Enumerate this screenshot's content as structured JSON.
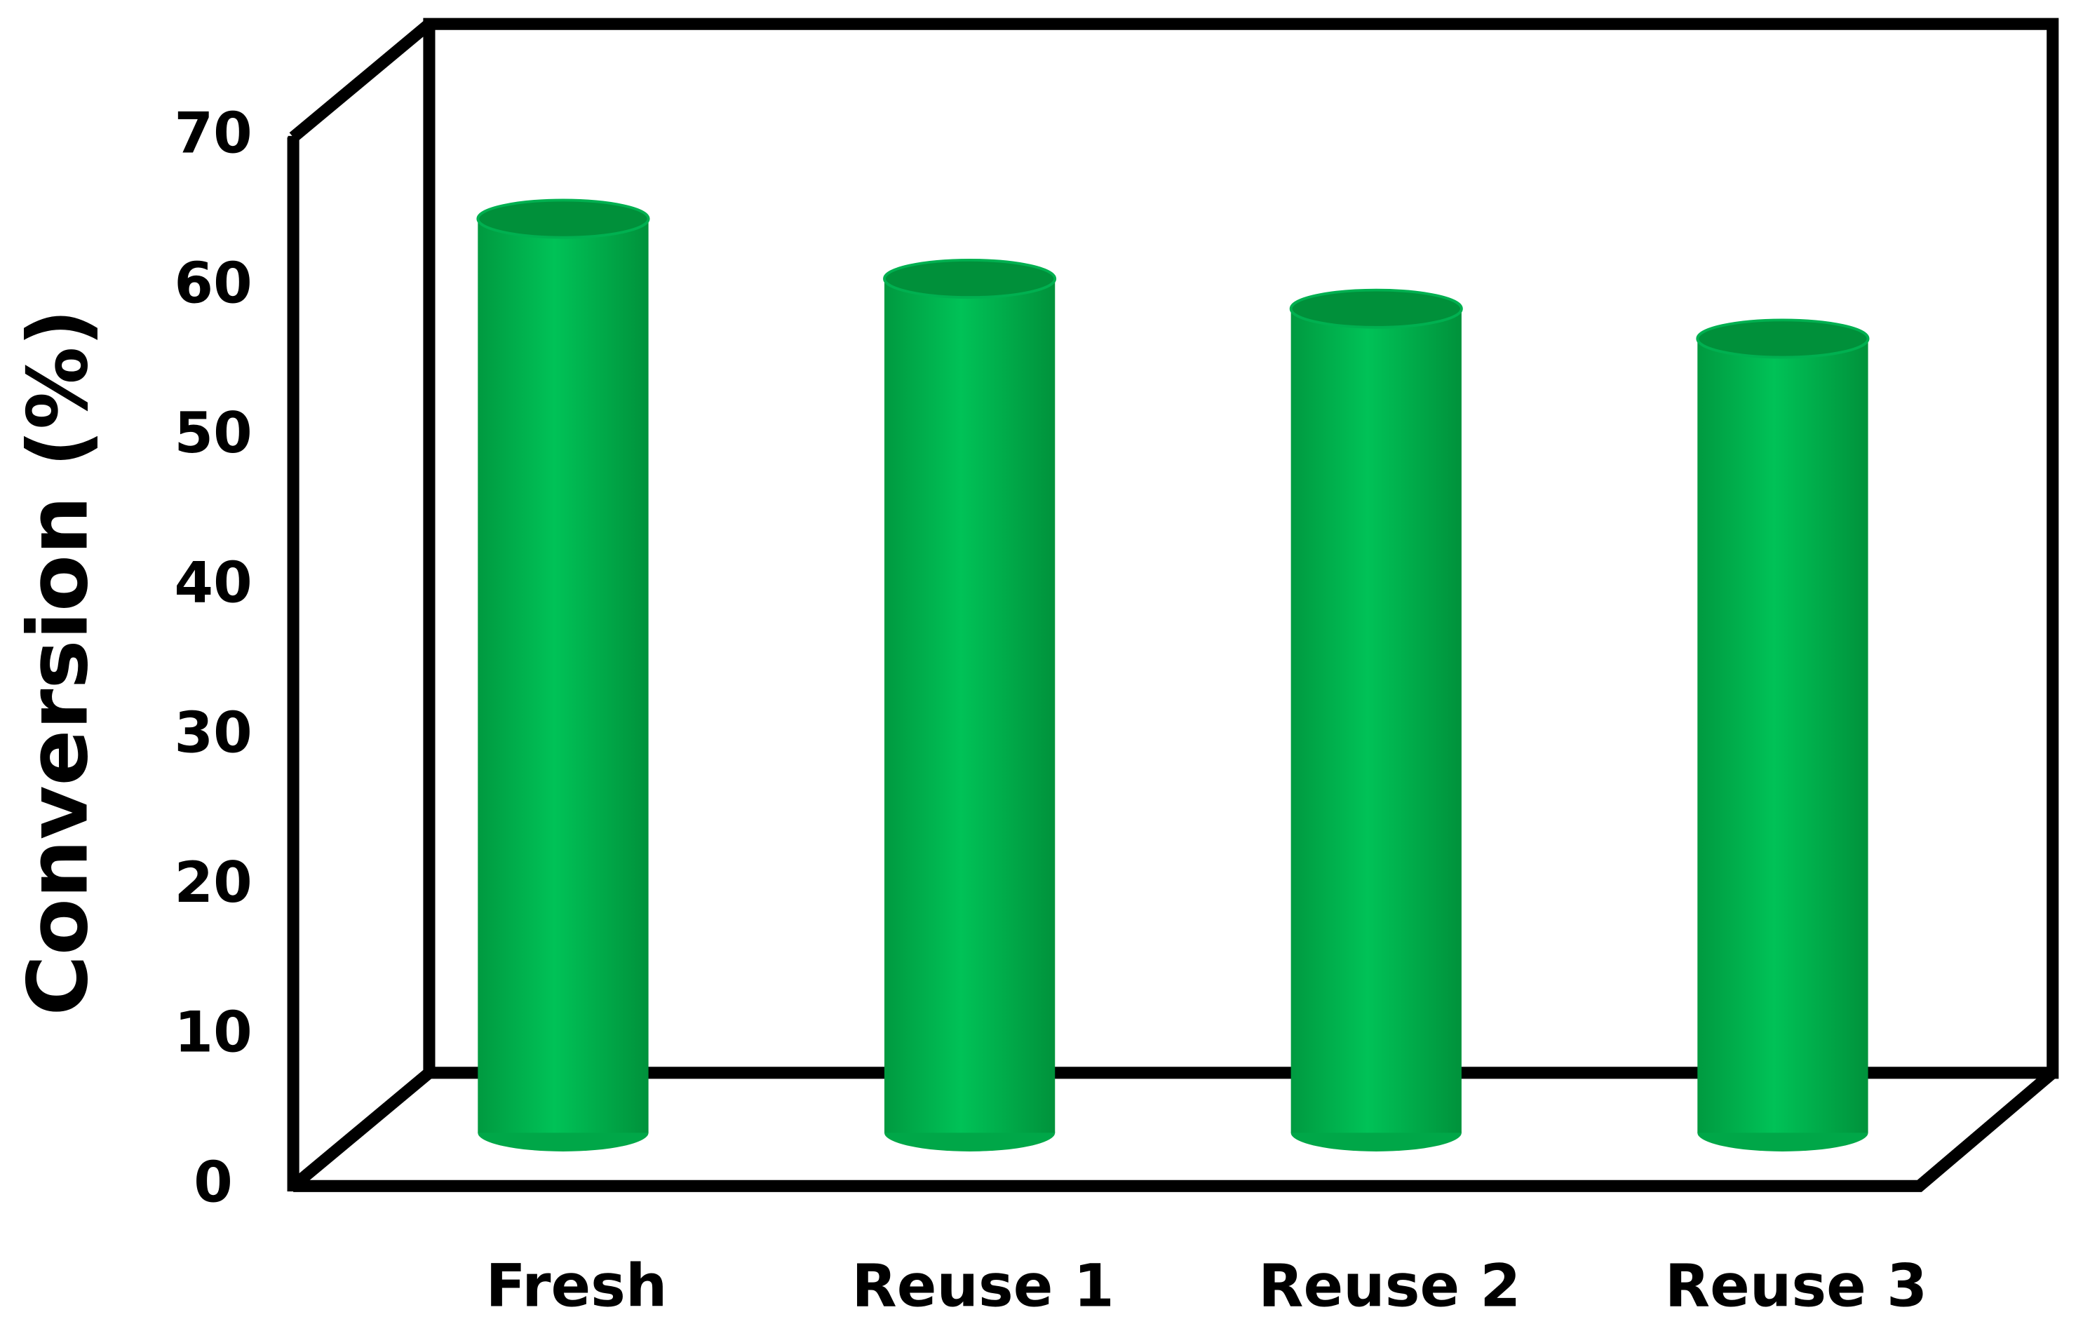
{
  "chart_data": {
    "type": "bar",
    "y_label": "Conversion (%)",
    "categories": [
      "Fresh",
      "Reuse 1",
      "Reuse 2",
      "Reuse 3"
    ],
    "values": [
      61,
      57,
      55,
      53
    ],
    "color": "#00b050",
    "ylim": [
      0,
      70
    ],
    "yticks": [
      0,
      10,
      20,
      30,
      40,
      50,
      60,
      70
    ],
    "grid": false
  }
}
